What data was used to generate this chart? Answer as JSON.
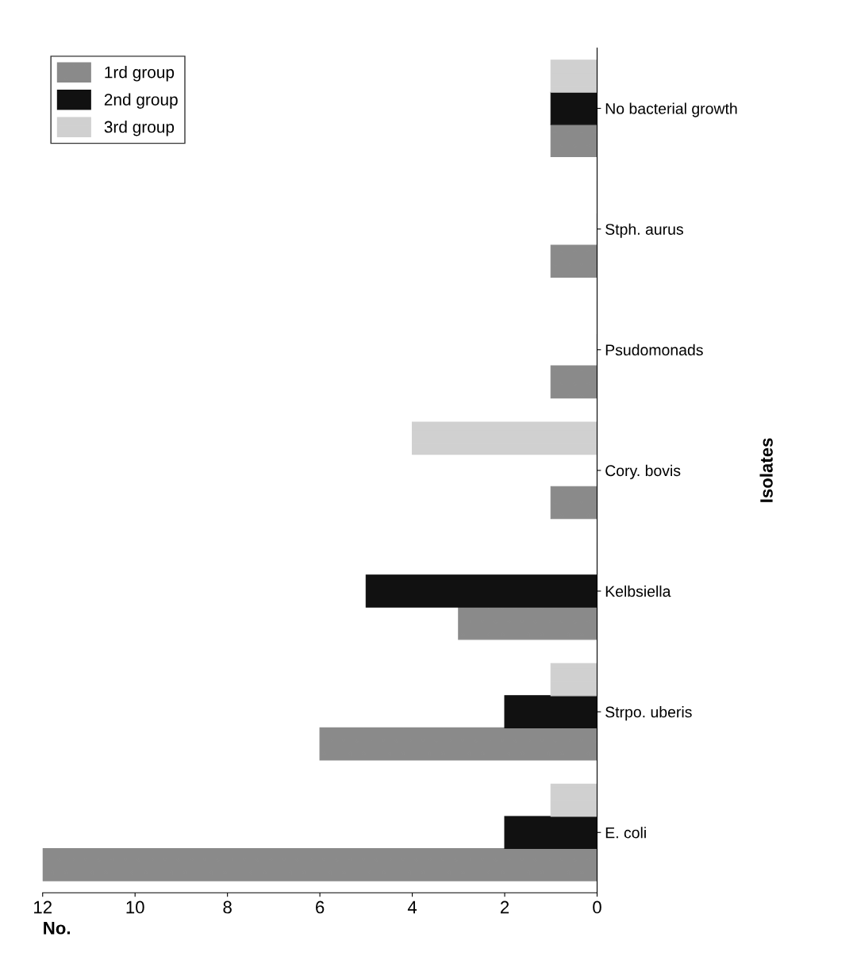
{
  "chart_data": {
    "type": "bar",
    "orientation": "horizontal",
    "xlabel": "No.",
    "ylabel": "Isolates",
    "categories": [
      "No bacterial growth",
      "Stph. aurus",
      "Psudomonads",
      "Cory. bovis",
      "Kelbsiella",
      "Strpo. uberis",
      "E. coli"
    ],
    "series": [
      {
        "name": "1rd group",
        "color": "#8a8a8a",
        "values": [
          1,
          1,
          1,
          1,
          3,
          6,
          12
        ]
      },
      {
        "name": "2nd group",
        "color": "#111111",
        "values": [
          1,
          0,
          0,
          0,
          5,
          2,
          2
        ]
      },
      {
        "name": "3rd group",
        "color": "#d0d0d0",
        "values": [
          1,
          0,
          0,
          4,
          0,
          1,
          1
        ]
      }
    ],
    "xlim": [
      12,
      0
    ],
    "xticks": [
      0,
      2,
      4,
      6,
      8,
      10,
      12
    ],
    "grid": false,
    "legend": "top left"
  }
}
